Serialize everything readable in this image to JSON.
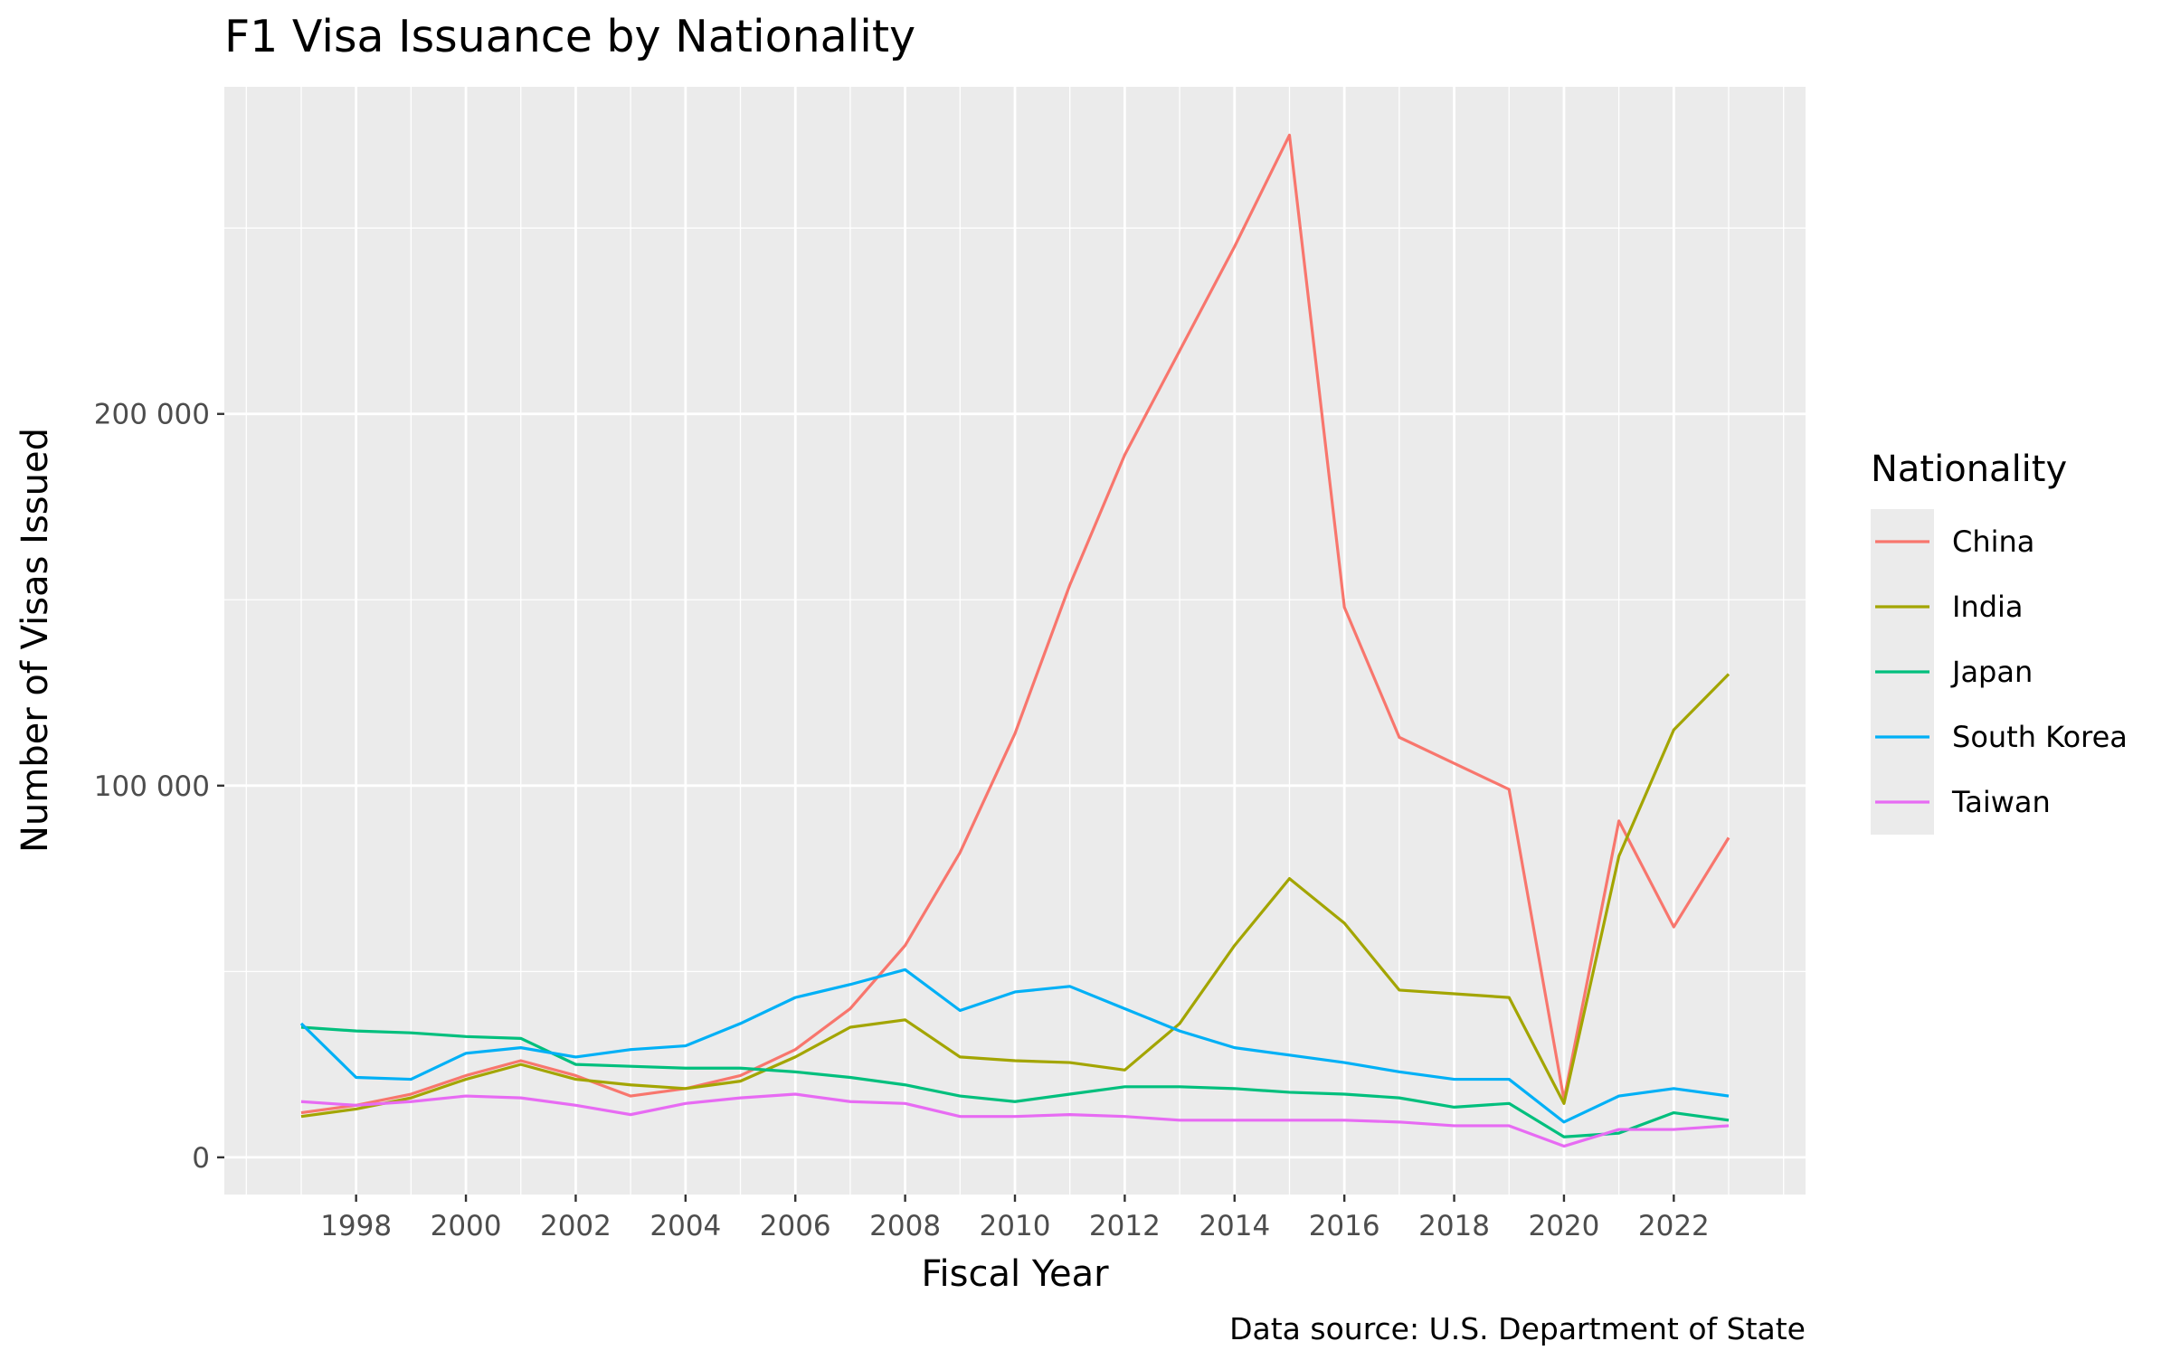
{
  "chart_data": {
    "type": "line",
    "title": "F1 Visa Issuance by Nationality",
    "xlabel": "Fiscal Year",
    "ylabel": "Number of Visas Issued",
    "caption": "Data source: U.S. Department of State",
    "legend_title": "Nationality",
    "legend_position": "right",
    "grid": true,
    "xlim": [
      1995.6,
      2024.4
    ],
    "ylim": [
      -10000,
      288000
    ],
    "x_ticks": [
      {
        "value": 1998,
        "label": "1998"
      },
      {
        "value": 2000,
        "label": "2000"
      },
      {
        "value": 2002,
        "label": "2002"
      },
      {
        "value": 2004,
        "label": "2004"
      },
      {
        "value": 2006,
        "label": "2006"
      },
      {
        "value": 2008,
        "label": "2008"
      },
      {
        "value": 2010,
        "label": "2010"
      },
      {
        "value": 2012,
        "label": "2012"
      },
      {
        "value": 2014,
        "label": "2014"
      },
      {
        "value": 2016,
        "label": "2016"
      },
      {
        "value": 2018,
        "label": "2018"
      },
      {
        "value": 2020,
        "label": "2020"
      },
      {
        "value": 2022,
        "label": "2022"
      }
    ],
    "x_minor_ticks": [
      1996,
      1997,
      1999,
      2001,
      2003,
      2005,
      2007,
      2009,
      2011,
      2013,
      2015,
      2017,
      2019,
      2021,
      2023,
      2024
    ],
    "y_ticks": [
      {
        "value": 0,
        "label": "0"
      },
      {
        "value": 100000,
        "label": "100 000"
      },
      {
        "value": 200000,
        "label": "200 000"
      }
    ],
    "y_minor_ticks": [
      50000,
      150000,
      250000
    ],
    "x": [
      1997,
      1998,
      1999,
      2000,
      2001,
      2002,
      2003,
      2004,
      2005,
      2006,
      2007,
      2008,
      2009,
      2010,
      2011,
      2012,
      2013,
      2014,
      2015,
      2016,
      2017,
      2018,
      2019,
      2020,
      2021,
      2022,
      2023
    ],
    "series": [
      {
        "name": "China",
        "color": "#F8766D",
        "values": [
          12000,
          14000,
          17000,
          22000,
          26000,
          22000,
          16500,
          18500,
          22000,
          29000,
          40000,
          57000,
          82000,
          114000,
          154000,
          189000,
          217000,
          245000,
          275000,
          148000,
          113000,
          106000,
          99000,
          15500,
          90500,
          62000,
          86000
        ]
      },
      {
        "name": "India",
        "color": "#A3A500",
        "values": [
          11000,
          13000,
          16000,
          21000,
          25000,
          21000,
          19500,
          18500,
          20500,
          27000,
          35000,
          37000,
          27000,
          26000,
          25500,
          23500,
          36000,
          57000,
          75000,
          63000,
          45000,
          44000,
          43000,
          14500,
          81000,
          115000,
          130000
        ]
      },
      {
        "name": "Japan",
        "color": "#00BF7D",
        "values": [
          35000,
          34000,
          33500,
          32500,
          32000,
          25000,
          24500,
          24000,
          24000,
          23000,
          21500,
          19500,
          16500,
          15000,
          17000,
          19000,
          19000,
          18500,
          17500,
          17000,
          16000,
          13500,
          14500,
          5500,
          6500,
          12000,
          10000
        ]
      },
      {
        "name": "South Korea",
        "color": "#00B0F6",
        "values": [
          36000,
          21500,
          21000,
          28000,
          29500,
          27000,
          29000,
          30000,
          36000,
          43000,
          46500,
          50500,
          39500,
          44500,
          46000,
          40000,
          34000,
          29500,
          27500,
          25500,
          23000,
          21000,
          21000,
          9500,
          16500,
          18500,
          16500
        ]
      },
      {
        "name": "Taiwan",
        "color": "#E76BF3",
        "values": [
          15000,
          14000,
          15000,
          16500,
          16000,
          14000,
          11500,
          14500,
          16000,
          17000,
          15000,
          14500,
          11000,
          11000,
          11500,
          11000,
          10000,
          10000,
          10000,
          10000,
          9500,
          8500,
          8500,
          3000,
          7500,
          7500,
          8500
        ]
      }
    ]
  }
}
